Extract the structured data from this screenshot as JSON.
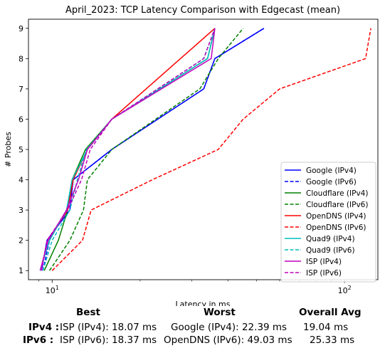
{
  "chart_data": {
    "type": "line",
    "title": "April_2023: TCP Latency Comparison with Edgecast (mean)",
    "xlabel": "Latency in ms",
    "ylabel": "# Probes",
    "x_scale": "log",
    "xlim": [
      8.3,
      130
    ],
    "ylim": [
      0.7,
      9.3
    ],
    "x_ticks": [
      {
        "value": 10,
        "label": "10^1"
      },
      {
        "value": 100,
        "label": "10^2"
      }
    ],
    "y_ticks": [
      1,
      2,
      3,
      4,
      5,
      6,
      7,
      8,
      9
    ],
    "grid": false,
    "legend_position": "lower right",
    "series": [
      {
        "name": "Google (IPv4)",
        "color": "#0000ff",
        "dash": "solid",
        "points": [
          [
            9.2,
            1
          ],
          [
            9.6,
            2
          ],
          [
            11.5,
            3
          ],
          [
            11.8,
            4
          ],
          [
            16,
            5
          ],
          [
            33,
            7
          ],
          [
            36,
            8
          ],
          [
            53,
            9
          ]
        ]
      },
      {
        "name": "Google (IPv6)",
        "color": "#0000ff",
        "dash": "dashed",
        "points": [
          [
            9.3,
            1
          ],
          [
            9.8,
            2
          ],
          [
            11.2,
            3
          ],
          [
            11.8,
            4
          ],
          [
            16,
            5
          ],
          [
            33,
            7
          ],
          [
            36,
            8
          ],
          [
            53,
            9
          ]
        ]
      },
      {
        "name": "Cloudflare (IPv4)",
        "color": "#008000",
        "dash": "solid",
        "points": [
          [
            9.4,
            1
          ],
          [
            10.5,
            2
          ],
          [
            11.3,
            3
          ],
          [
            11.7,
            4
          ],
          [
            13,
            5
          ],
          [
            16,
            6
          ],
          [
            34,
            8
          ],
          [
            36,
            9
          ]
        ]
      },
      {
        "name": "Cloudflare (IPv6)",
        "color": "#008000",
        "dash": "dashed",
        "points": [
          [
            9.8,
            1
          ],
          [
            11.5,
            2
          ],
          [
            12.8,
            3
          ],
          [
            13.2,
            4
          ],
          [
            16,
            5
          ],
          [
            32,
            7
          ],
          [
            37,
            8
          ],
          [
            45,
            9
          ]
        ]
      },
      {
        "name": "OpenDNS (IPv4)",
        "color": "#ff0000",
        "dash": "solid",
        "points": [
          [
            9.7,
            2
          ],
          [
            11.3,
            3
          ],
          [
            11.8,
            4
          ],
          [
            13.2,
            5
          ],
          [
            16,
            6
          ],
          [
            36,
            9
          ]
        ]
      },
      {
        "name": "OpenDNS (IPv6)",
        "color": "#ff0000",
        "dash": "dashed",
        "points": [
          [
            10,
            1
          ],
          [
            12.7,
            2
          ],
          [
            13.6,
            3
          ],
          [
            22,
            4
          ],
          [
            37,
            5
          ],
          [
            45,
            6
          ],
          [
            60,
            7
          ],
          [
            118,
            8
          ],
          [
            123,
            9
          ]
        ]
      },
      {
        "name": "Quad9 (IPv4)",
        "color": "#00bfbf",
        "dash": "solid",
        "points": [
          [
            9.1,
            1
          ],
          [
            9.8,
            2
          ],
          [
            11.2,
            3
          ],
          [
            11.7,
            4
          ],
          [
            13.2,
            5
          ],
          [
            16,
            6
          ],
          [
            34,
            8
          ],
          [
            36,
            9
          ]
        ]
      },
      {
        "name": "Quad9 (IPv6)",
        "color": "#00bfbf",
        "dash": "dashed",
        "points": [
          [
            9.3,
            1
          ],
          [
            10,
            2
          ],
          [
            11.5,
            3
          ],
          [
            12.2,
            4
          ],
          [
            13.1,
            5
          ],
          [
            16,
            6
          ],
          [
            33,
            8
          ],
          [
            36,
            9
          ]
        ]
      },
      {
        "name": "ISP (IPv4)",
        "color": "#bf00bf",
        "dash": "solid",
        "points": [
          [
            9.1,
            1
          ],
          [
            9.7,
            2
          ],
          [
            11.2,
            3
          ],
          [
            12.3,
            4
          ],
          [
            13.2,
            5
          ],
          [
            16,
            6
          ],
          [
            35,
            8
          ],
          [
            36,
            9
          ]
        ]
      },
      {
        "name": "ISP (IPv6)",
        "color": "#bf00bf",
        "dash": "dashed",
        "points": [
          [
            9.2,
            1
          ],
          [
            9.6,
            2
          ],
          [
            11.3,
            3
          ],
          [
            12.6,
            4
          ],
          [
            13.5,
            5
          ],
          [
            16,
            6
          ],
          [
            33,
            8
          ],
          [
            36,
            9
          ]
        ]
      }
    ]
  },
  "summary": {
    "best_header": "Best",
    "worst_header": "Worst",
    "avg_header": "Overall Avg",
    "rows": [
      {
        "label": "IPv4 :",
        "best": "ISP (IPv4): 18.07 ms",
        "worst": "Google (IPv4): 22.39 ms",
        "avg": "19.04 ms"
      },
      {
        "label": "IPv6 :",
        "best": "ISP (IPv6): 18.37 ms",
        "worst": "OpenDNS (IPv6): 49.03 ms",
        "avg": "25.33 ms"
      }
    ]
  }
}
